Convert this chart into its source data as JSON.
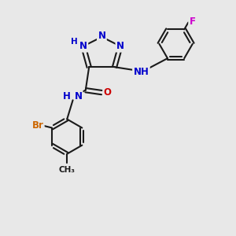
{
  "bg_color": "#e8e8e8",
  "bond_color": "#1a1a1a",
  "bond_width": 1.5,
  "atom_colors": {
    "N": "#0000cc",
    "O": "#cc0000",
    "F": "#cc00cc",
    "Br": "#cc6600",
    "C": "#1a1a1a",
    "H": "#0000cc"
  },
  "font_size": 8.5,
  "font_size_small": 7.5,
  "xlim": [
    0,
    10
  ],
  "ylim": [
    0,
    10
  ]
}
